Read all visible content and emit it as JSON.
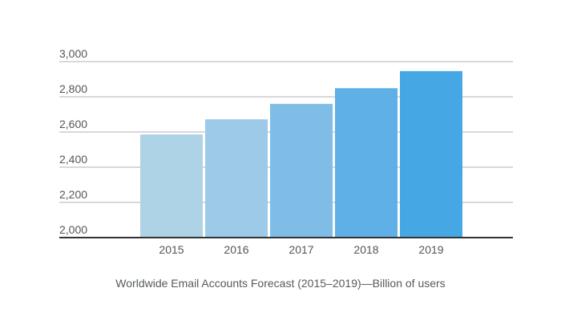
{
  "chart_data": {
    "type": "bar",
    "title": "Worldwide Email Accounts Forecast (2015–2019)—Billion of users",
    "xlabel": "",
    "ylabel": "",
    "categories": [
      "2015",
      "2016",
      "2017",
      "2018",
      "2019"
    ],
    "values": [
      2586,
      2672,
      2760,
      2849,
      2946
    ],
    "ylim": [
      2000,
      3000
    ],
    "yticks": [
      2000,
      2200,
      2400,
      2600,
      2800,
      3000
    ],
    "ytick_labels": [
      "2,000",
      "2,200",
      "2,400",
      "2,600",
      "2,800",
      "3,000"
    ],
    "grid": true,
    "legend": "none",
    "bar_colors": [
      "#aed2e6",
      "#9ccae8",
      "#7fbde6",
      "#5fb0e6",
      "#45a8e5"
    ],
    "grid_color": "#cccccc",
    "axis_color": "#333333",
    "label_color": "#555555"
  }
}
